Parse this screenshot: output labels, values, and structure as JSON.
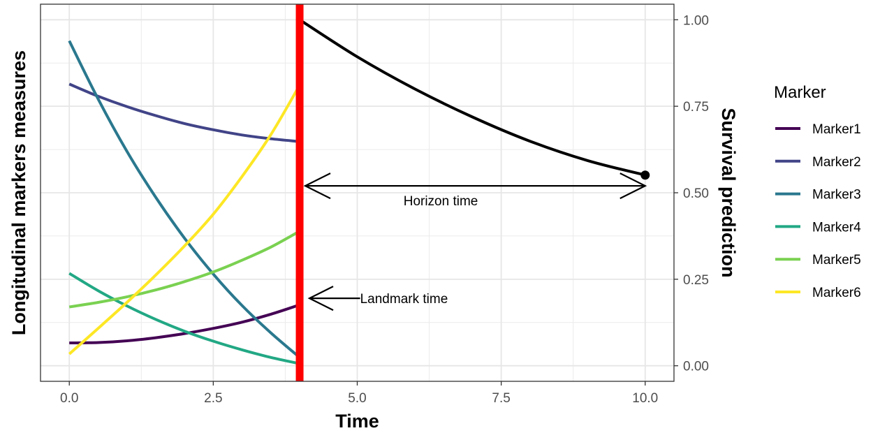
{
  "chart_data": {
    "type": "line",
    "x_label": "Time",
    "y_left_label": "Longitudinal markers measures",
    "y_right_label": "Survival prediction",
    "x_ticks": [
      "0.0",
      "2.5",
      "5.0",
      "7.5",
      "10.0"
    ],
    "x_tick_values": [
      0,
      2.5,
      5,
      7.5,
      10
    ],
    "y_right_ticks": [
      "0.00",
      "0.25",
      "0.50",
      "0.75",
      "1.00"
    ],
    "y_right_tick_values": [
      0,
      0.25,
      0.5,
      0.75,
      1
    ],
    "xlim": [
      -0.5,
      10.5
    ],
    "ylim": [
      -0.045,
      1.045
    ],
    "grid": true,
    "legend": {
      "title": "Marker",
      "position": "right"
    },
    "landmark": {
      "x": 4,
      "color": "#ff0000",
      "label": "Landmark time"
    },
    "horizon": {
      "from": 4,
      "to": 10,
      "label": "Horizon time"
    },
    "series": [
      {
        "name": "Marker1",
        "color": "#440154",
        "x": [
          0,
          0.5,
          1,
          1.5,
          2,
          2.5,
          3,
          3.5,
          4
        ],
        "y": [
          0.066,
          0.067,
          0.072,
          0.081,
          0.093,
          0.108,
          0.126,
          0.149,
          0.176
        ]
      },
      {
        "name": "Marker2",
        "color": "#414487",
        "x": [
          0,
          0.5,
          1,
          1.5,
          2,
          2.5,
          3,
          3.5,
          4
        ],
        "y": [
          0.814,
          0.779,
          0.749,
          0.723,
          0.7,
          0.682,
          0.667,
          0.656,
          0.648
        ]
      },
      {
        "name": "Marker3",
        "color": "#2A788E",
        "x": [
          0,
          0.5,
          1,
          1.5,
          2,
          2.5,
          3,
          3.5,
          4
        ],
        "y": [
          0.939,
          0.771,
          0.62,
          0.487,
          0.369,
          0.265,
          0.174,
          0.095,
          0.024
        ]
      },
      {
        "name": "Marker4",
        "color": "#22A884",
        "x": [
          0,
          0.5,
          1,
          1.5,
          2,
          2.5,
          3,
          3.5,
          4
        ],
        "y": [
          0.267,
          0.217,
          0.173,
          0.134,
          0.1,
          0.071,
          0.046,
          0.024,
          0.006
        ]
      },
      {
        "name": "Marker5",
        "color": "#7AD151",
        "x": [
          0,
          0.5,
          1,
          1.5,
          2,
          2.5,
          3,
          3.5,
          4
        ],
        "y": [
          0.17,
          0.183,
          0.199,
          0.219,
          0.243,
          0.271,
          0.305,
          0.343,
          0.389
        ]
      },
      {
        "name": "Marker6",
        "color": "#FDE725",
        "x": [
          0,
          0.5,
          1,
          1.5,
          2,
          2.5,
          3,
          3.5,
          4
        ],
        "y": [
          0.034,
          0.108,
          0.183,
          0.262,
          0.346,
          0.438,
          0.547,
          0.668,
          0.811
        ]
      },
      {
        "name": "Survival",
        "color": "#000000",
        "x": [
          4,
          5,
          6,
          7,
          8,
          9,
          10
        ],
        "y": [
          1.0,
          0.893,
          0.8,
          0.719,
          0.649,
          0.593,
          0.551
        ]
      }
    ]
  }
}
